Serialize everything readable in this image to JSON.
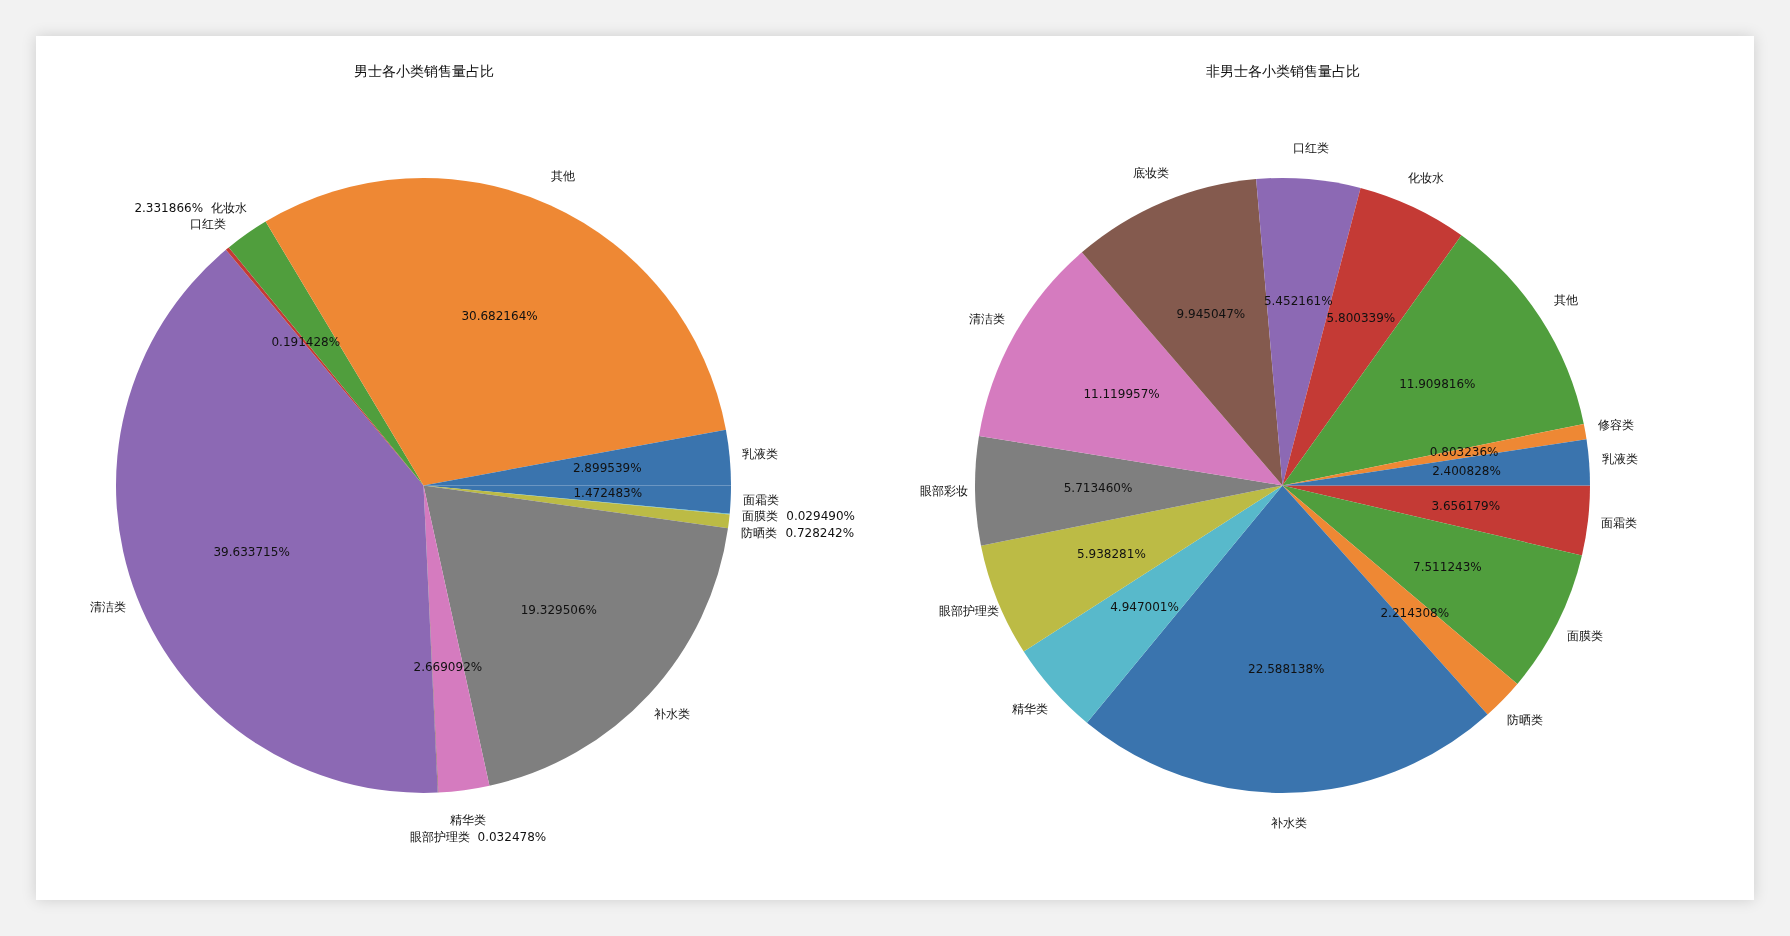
{
  "chart_data": [
    {
      "type": "pie",
      "title": "男士各小类销售量占比",
      "categories": [
        "乳液类",
        "其他",
        "化妆水",
        "口红类",
        "清洁类",
        "眼部护理类",
        "精华类",
        "补水类",
        "防晒类",
        "面膜类",
        "面霜类"
      ],
      "values": [
        2.899539,
        30.682164,
        2.331866,
        0.191428,
        39.633715,
        0.032478,
        2.669092,
        19.329506,
        0.728242,
        0.02949,
        1.472483
      ],
      "value_labels": [
        "2.899539%",
        "30.682164%",
        "2.331866%",
        "0.191428%",
        "39.633715%",
        "0.032478%",
        "2.669092%",
        "19.329506%",
        "0.728242%",
        "0.029490%",
        "1.472483%"
      ],
      "colors": [
        "#3a74ae",
        "#ee8834",
        "#509e3d",
        "#c43a35",
        "#8c69b4",
        "#845a4e",
        "#d57bbf",
        "#7f7f7f",
        "#bcbb45",
        "#58b9cb",
        "#3a74ae"
      ],
      "legend": false
    },
    {
      "type": "pie",
      "title": "非男士各小类销售量占比",
      "categories": [
        "乳液类",
        "修容类",
        "其他",
        "化妆水",
        "口红类",
        "底妆类",
        "清洁类",
        "眼部彩妆",
        "眼部护理类",
        "精华类",
        "补水类",
        "防晒类",
        "面膜类",
        "面霜类"
      ],
      "values": [
        2.400828,
        0.803236,
        11.909816,
        5.800339,
        5.452161,
        9.945047,
        11.119957,
        5.71346,
        5.938281,
        4.947001,
        22.588138,
        2.214308,
        7.511243,
        3.656179
      ],
      "value_labels": [
        "2.400828%",
        "0.803236%",
        "11.909816%",
        "5.800339%",
        "5.452161%",
        "9.945047%",
        "11.119957%",
        "5.713460%",
        "5.938281%",
        "4.947001%",
        "22.588138%",
        "2.214308%",
        "7.511243%",
        "3.656179%"
      ],
      "colors": [
        "#3a74ae",
        "#ee8834",
        "#509e3d",
        "#c43a35",
        "#8c69b4",
        "#845a4e",
        "#d57bbf",
        "#7f7f7f",
        "#bcbb45",
        "#58b9cb",
        "#3a74ae",
        "#ee8834",
        "#509e3d",
        "#c43a35"
      ],
      "legend": false
    }
  ]
}
